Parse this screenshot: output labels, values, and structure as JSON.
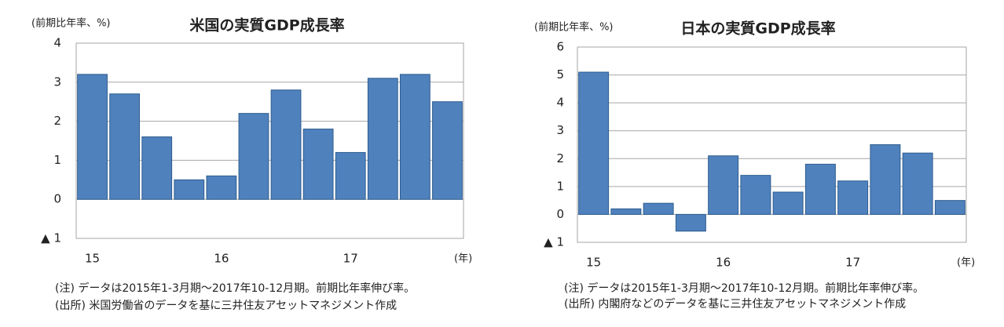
{
  "chart_data": [
    {
      "type": "bar",
      "title": "米国の実質GDP成長率",
      "y_label": "(前期比年率、%)",
      "x_label": "(年)",
      "categories": [
        "15",
        null,
        null,
        null,
        "16",
        null,
        null,
        null,
        "17",
        null,
        null,
        null
      ],
      "values": [
        3.2,
        2.7,
        1.6,
        0.5,
        0.6,
        2.2,
        2.8,
        1.8,
        1.2,
        3.1,
        3.2,
        2.5
      ],
      "color": "#4f81bd",
      "ylim": [
        -1,
        4
      ],
      "yticks": [
        {
          "value": -1,
          "label": "▲ 1"
        },
        0,
        1,
        2,
        3,
        4
      ],
      "grid": true,
      "notes": [
        "(注) データは2015年1-3月期～2017年10-12月期。前期比年率伸び率。",
        "(出所) 米国労働省のデータを基に三井住友アセットマネジメント作成"
      ]
    },
    {
      "type": "bar",
      "title": "日本の実質GDP成長率",
      "y_label": "(前期比年率、%)",
      "x_label": "(年)",
      "categories": [
        "15",
        null,
        null,
        null,
        "16",
        null,
        null,
        null,
        "17",
        null,
        null,
        null
      ],
      "values": [
        5.1,
        0.2,
        0.4,
        -0.6,
        2.1,
        1.4,
        0.8,
        1.8,
        1.2,
        2.5,
        2.2,
        0.5
      ],
      "color": "#4f81bd",
      "ylim": [
        -1,
        6
      ],
      "yticks": [
        {
          "value": -1,
          "label": "▲ 1"
        },
        0,
        1,
        2,
        3,
        4,
        5,
        6
      ],
      "grid": true,
      "notes": [
        "(注) データは2015年1-3月期～2017年10-12月期。前期比年率伸び率。",
        "(出所) 内閣府などのデータを基に三井住友アセットマネジメント作成"
      ]
    }
  ]
}
